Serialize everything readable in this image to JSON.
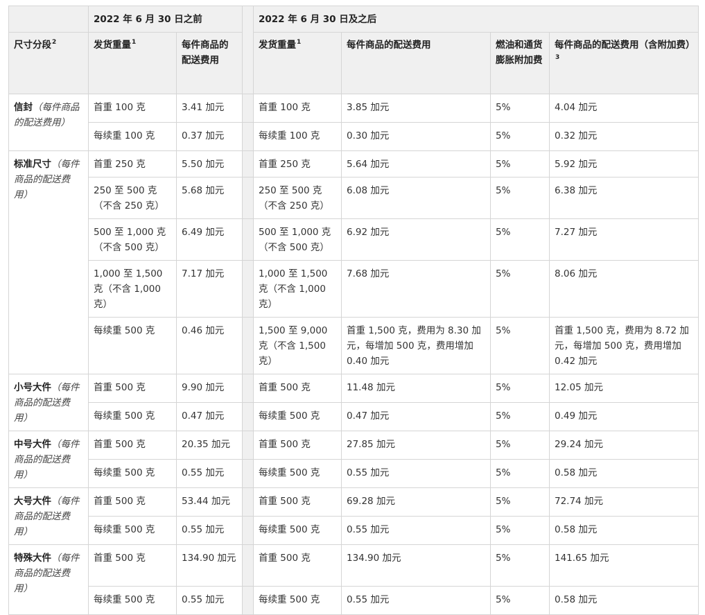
{
  "header": {
    "group_before": "2022 年 6 月 30 日之前",
    "group_after": "2022 年 6 月 30 日及之后",
    "col_size_tier": "尺寸分段",
    "col_size_tier_sup": "2",
    "col_weight_before": "发货重量",
    "col_weight_before_sup": "1",
    "col_fee_before": "每件商品的配送费用",
    "col_weight_after": "发货重量",
    "col_weight_after_sup": "1",
    "col_fee_after": "每件商品的配送费用",
    "col_surcharge": "燃油和通货膨胀附加费",
    "col_fee_with_surcharge": "每件商品的配送费用（含附加费）",
    "col_fee_with_surcharge_sup": "3"
  },
  "segments": [
    {
      "name": "信封",
      "note": "（每件商品的配送费用）",
      "rows": [
        {
          "w_before": "首重 100 克",
          "fee_before": "3.41 加元",
          "w_after": "首重 100 克",
          "fee_after": "3.85 加元",
          "surcharge": "5%",
          "fee_total": "4.04 加元"
        },
        {
          "w_before": "每续重 100 克",
          "fee_before": "0.37 加元",
          "w_after": "每续重 100 克",
          "fee_after": "0.30 加元",
          "surcharge": "5%",
          "fee_total": "0.32 加元"
        }
      ]
    },
    {
      "name": "标准尺寸",
      "note": "（每件商品的配送费用）",
      "rows": [
        {
          "w_before": "首重 250 克",
          "fee_before": "5.50 加元",
          "w_after": "首重 250 克",
          "fee_after": "5.64 加元",
          "surcharge": "5%",
          "fee_total": "5.92 加元"
        },
        {
          "w_before": "250 至 500 克（不含 250 克）",
          "fee_before": "5.68 加元",
          "w_after": "250 至 500 克（不含 250 克）",
          "fee_after": "6.08 加元",
          "surcharge": "5%",
          "fee_total": "6.38 加元"
        },
        {
          "w_before": "500 至 1,000 克（不含 500 克）",
          "fee_before": "6.49 加元",
          "w_after": "500 至 1,000 克（不含 500 克）",
          "fee_after": "6.92 加元",
          "surcharge": "5%",
          "fee_total": "7.27 加元"
        },
        {
          "w_before": "1,000 至 1,500 克（不含 1,000 克）",
          "fee_before": "7.17 加元",
          "w_after": "1,000 至 1,500 克（不含 1,000 克）",
          "fee_after": "7.68 加元",
          "surcharge": "5%",
          "fee_total": "8.06 加元"
        },
        {
          "w_before": "每续重 500 克",
          "fee_before": "0.46 加元",
          "w_after": "1,500 至 9,000 克（不含 1,500 克）",
          "fee_after": "首重 1,500 克，费用为 8.30 加元，每增加 500 克，费用增加 0.40 加元",
          "surcharge": "5%",
          "fee_total": "首重 1,500 克，费用为 8.72 加元，每增加 500 克，费用增加 0.42 加元"
        }
      ]
    },
    {
      "name": "小号大件",
      "note": "（每件商品的配送费用）",
      "rows": [
        {
          "w_before": "首重 500 克",
          "fee_before": "9.90 加元",
          "w_after": "首重 500 克",
          "fee_after": "11.48 加元",
          "surcharge": "5%",
          "fee_total": "12.05 加元"
        },
        {
          "w_before": "每续重 500 克",
          "fee_before": "0.47 加元",
          "w_after": "每续重 500 克",
          "fee_after": "0.47 加元",
          "surcharge": "5%",
          "fee_total": "0.49 加元"
        }
      ]
    },
    {
      "name": "中号大件",
      "note": "（每件商品的配送费用）",
      "rows": [
        {
          "w_before": "首重 500 克",
          "fee_before": "20.35 加元",
          "w_after": "首重 500 克",
          "fee_after": "27.85 加元",
          "surcharge": "5%",
          "fee_total": "29.24 加元"
        },
        {
          "w_before": "每续重 500 克",
          "fee_before": "0.55 加元",
          "w_after": "每续重 500 克",
          "fee_after": "0.55 加元",
          "surcharge": "5%",
          "fee_total": "0.58 加元"
        }
      ]
    },
    {
      "name": "大号大件",
      "note": "（每件商品的配送费用）",
      "rows": [
        {
          "w_before": "首重 500 克",
          "fee_before": "53.44 加元",
          "w_after": "首重 500 克",
          "fee_after": "69.28 加元",
          "surcharge": "5%",
          "fee_total": "72.74 加元"
        },
        {
          "w_before": "每续重 500 克",
          "fee_before": "0.55 加元",
          "w_after": "每续重 500 克",
          "fee_after": "0.55 加元",
          "surcharge": "5%",
          "fee_total": "0.58 加元"
        }
      ]
    },
    {
      "name": "特殊大件",
      "note": "（每件商品的配送费用）",
      "rows": [
        {
          "w_before": "首重 500 克",
          "fee_before": "134.90 加元",
          "w_after": "首重 500 克",
          "fee_after": "134.90 加元",
          "surcharge": "5%",
          "fee_total": "141.65 加元"
        },
        {
          "w_before": "每续重 500 克",
          "fee_before": "0.55 加元",
          "w_after": "每续重 500 克",
          "fee_after": "0.55 加元",
          "surcharge": "5%",
          "fee_total": "0.58 加元"
        }
      ]
    }
  ]
}
